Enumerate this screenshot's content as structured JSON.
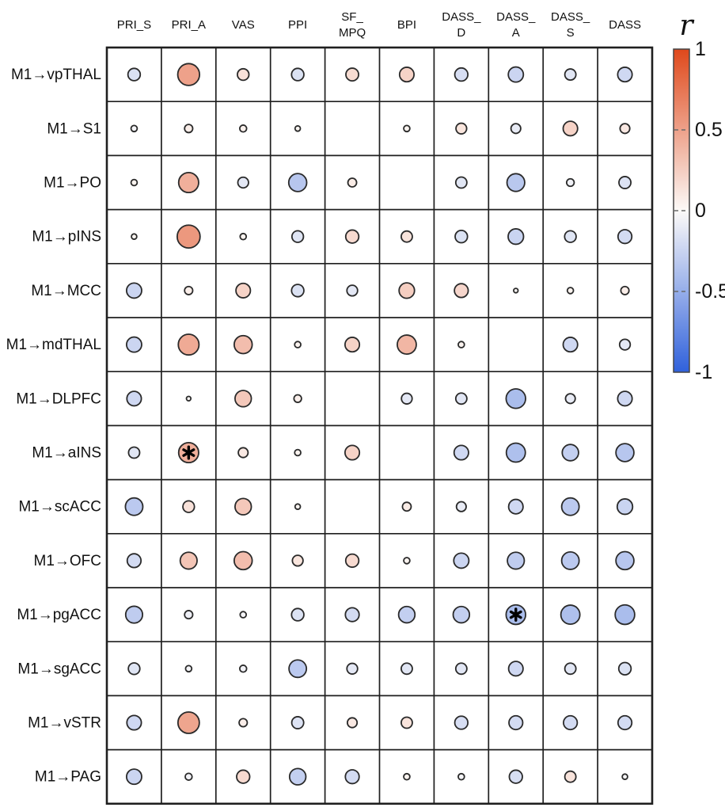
{
  "figure": {
    "colorbar": {
      "label": "r",
      "ticks": [
        1,
        0.5,
        0,
        -0.5,
        -1
      ],
      "tick_labels": [
        "1",
        "0.5",
        "0",
        "-0.5",
        "-1"
      ],
      "range": [
        -1,
        1
      ],
      "dashed_tick_values": [
        0.5,
        0,
        -0.5
      ],
      "color_positive": "#DF481B",
      "color_zero": "#FCFAF8",
      "color_negative": "#3061DB"
    }
  },
  "chart_data": {
    "type": "heatmap",
    "subtype": "correlation-bubble-matrix",
    "title": "",
    "xlabel": "",
    "ylabel": "",
    "legend_label": "r",
    "encoding": {
      "bubble_size": "abs(r)",
      "bubble_color": "r (blue negative, red positive)",
      "asterisk": "significant correlation"
    },
    "columns": [
      "PRI_S",
      "PRI_A",
      "VAS",
      "PPI",
      "SF_MPQ",
      "BPI",
      "DASS_D",
      "DASS_A",
      "DASS_S",
      "DASS"
    ],
    "column_display": [
      "PRI_S",
      "PRI_A",
      "VAS",
      "PPI",
      "SF_\nMPQ",
      "BPI",
      "DASS_\nD",
      "DASS_\nA",
      "DASS_\nS",
      "DASS"
    ],
    "rows": [
      "M1→vpTHAL",
      "M1→S1",
      "M1→PO",
      "M1→pINS",
      "M1→MCC",
      "M1→mdTHAL",
      "M1→DLPFC",
      "M1→aINS",
      "M1→scACC",
      "M1→OFC",
      "M1→pgACC",
      "M1→sgACC",
      "M1→vSTR",
      "M1→PAG"
    ],
    "values": [
      [
        -0.16,
        0.5,
        0.14,
        -0.16,
        0.17,
        0.22,
        -0.18,
        -0.24,
        -0.13,
        -0.22
      ],
      [
        -0.04,
        0.07,
        0.05,
        0.03,
        null,
        0.04,
        0.12,
        -0.1,
        0.22,
        0.1
      ],
      [
        0.04,
        0.42,
        -0.12,
        -0.34,
        0.08,
        null,
        -0.13,
        -0.33,
        -0.06,
        -0.15
      ],
      [
        0.03,
        0.55,
        0.04,
        -0.14,
        0.18,
        0.13,
        -0.16,
        -0.25,
        -0.14,
        -0.2
      ],
      [
        -0.24,
        0.07,
        0.22,
        -0.16,
        -0.12,
        0.25,
        0.2,
        0.02,
        0.04,
        0.07
      ],
      [
        -0.24,
        0.45,
        0.34,
        0.04,
        0.22,
        0.38,
        0.04,
        null,
        -0.22,
        -0.12
      ],
      [
        -0.22,
        0.02,
        0.28,
        0.06,
        null,
        -0.12,
        -0.13,
        -0.4,
        -0.1,
        -0.22
      ],
      [
        -0.13,
        0.42,
        0.1,
        0.04,
        0.22,
        null,
        -0.22,
        -0.38,
        -0.28,
        -0.34
      ],
      [
        -0.32,
        0.14,
        0.28,
        0.03,
        null,
        0.08,
        -0.1,
        -0.22,
        -0.32,
        -0.25
      ],
      [
        -0.2,
        0.3,
        0.34,
        0.12,
        0.18,
        0.04,
        -0.24,
        -0.3,
        -0.32,
        -0.34
      ],
      [
        -0.3,
        -0.07,
        -0.04,
        -0.16,
        -0.2,
        -0.28,
        -0.28,
        -0.4,
        -0.38,
        -0.4
      ],
      [
        -0.14,
        -0.04,
        -0.05,
        -0.32,
        -0.12,
        -0.13,
        -0.13,
        -0.22,
        -0.13,
        -0.16
      ],
      [
        -0.22,
        0.48,
        0.07,
        -0.15,
        0.1,
        0.13,
        -0.18,
        -0.2,
        -0.2,
        -0.2
      ],
      [
        -0.24,
        -0.05,
        0.18,
        -0.28,
        -0.2,
        0.04,
        -0.04,
        -0.18,
        0.13,
        -0.03
      ]
    ],
    "significant": [
      {
        "row": "M1→aINS",
        "column": "PRI_A"
      },
      {
        "row": "M1→pgACC",
        "column": "DASS_A"
      }
    ]
  }
}
